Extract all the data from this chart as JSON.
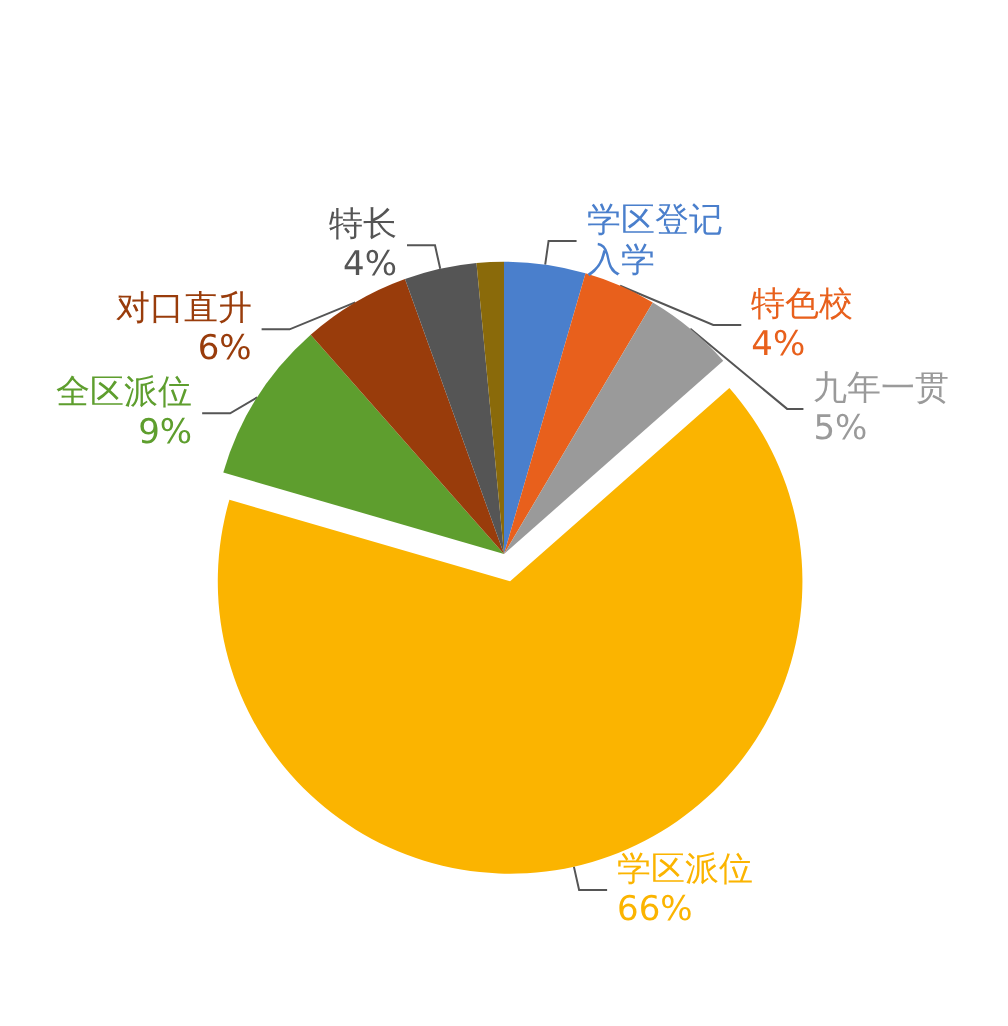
{
  "chart_data": {
    "type": "pie",
    "categories": [
      "学区登记入学",
      "特色校",
      "九年一贯",
      "学区派位",
      "全区派位",
      "对口直升",
      "特长",
      null
    ],
    "values": [
      4.5,
      4,
      5,
      66,
      9,
      6,
      4,
      1.5
    ],
    "value_labels": [
      null,
      "4%",
      "5%",
      "66%",
      "9%",
      "6%",
      "4%",
      null
    ],
    "colors": [
      "#4a7fcc",
      "#e8601c",
      "#9a9a9a",
      "#fbb400",
      "#5e9e2e",
      "#993c0b",
      "#555555",
      "#8a6a0a"
    ]
  }
}
